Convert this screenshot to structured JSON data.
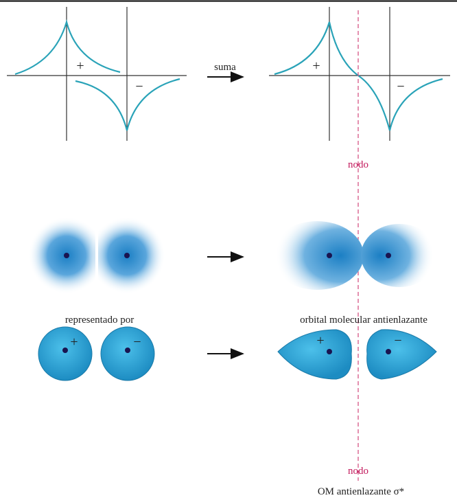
{
  "wave_functions": {
    "left_plus": "+",
    "left_minus": "−",
    "operation": "suma",
    "right_plus": "+",
    "right_minus": "−",
    "node_label": "nodo"
  },
  "density": {
    "left_caption": "representado por",
    "right_caption": "orbital molecular antienlazante"
  },
  "lobes": {
    "left_plus": "+",
    "left_minus": "−",
    "right_plus": "+",
    "right_minus": "−",
    "node_label": "nodo",
    "caption": "OM antienlazante σ*"
  }
}
